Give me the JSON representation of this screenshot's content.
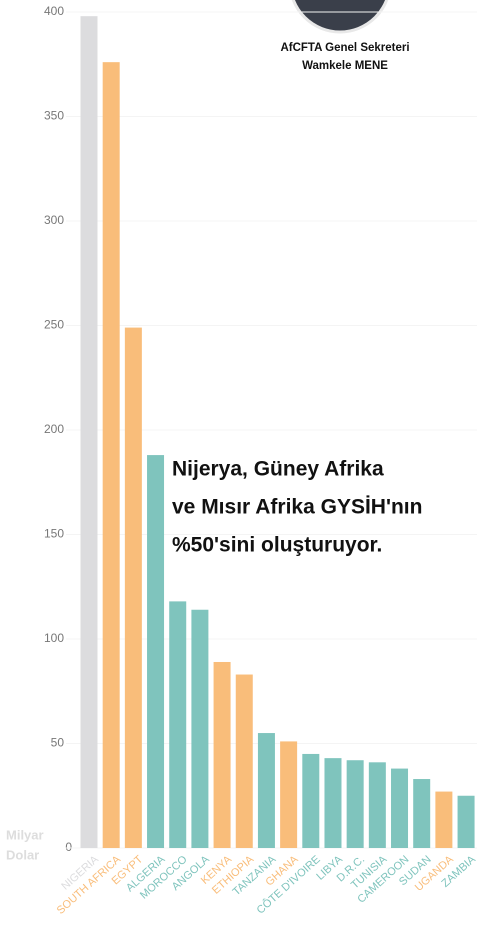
{
  "chart_data": {
    "type": "bar",
    "caption": [
      "AfCFTA Genel Sekreteri",
      "Wamkele MENE"
    ],
    "annotation": [
      "Nijerya, Güney Afrika",
      "ve Mısır Afrika GYSİH'nın",
      "%50'sini oluşturuyor."
    ],
    "y_label": [
      "Milyar",
      "Dolar"
    ],
    "categories": [
      "NIGERIA",
      "SOUTH AFRICA",
      "EGYPT",
      "ALGERIA",
      "MOROCCO",
      "ANGOLA",
      "KENYA",
      "ETHIOPIA",
      "TANZANIA",
      "GHANA",
      "CÔTE D'IVOIRE",
      "LIBYA",
      "D.R.C.",
      "TUNISIA",
      "CAMEROON",
      "SUDAN",
      "UGANDA",
      "ZAMBIA"
    ],
    "values": [
      398,
      376,
      249,
      188,
      118,
      114,
      89,
      83,
      55,
      51,
      45,
      43,
      42,
      41,
      38,
      33,
      27,
      25
    ],
    "colors": [
      "#dcdcde",
      "#f9bd7a",
      "#f9bd7a",
      "#7fc4bd",
      "#7fc4bd",
      "#7fc4bd",
      "#f9bd7a",
      "#f9bd7a",
      "#7fc4bd",
      "#f9bd7a",
      "#7fc4bd",
      "#7fc4bd",
      "#7fc4bd",
      "#7fc4bd",
      "#7fc4bd",
      "#7fc4bd",
      "#f9bd7a",
      "#7fc4bd"
    ],
    "ylim": [
      0,
      400
    ],
    "yticks": [
      0,
      50,
      100,
      150,
      200,
      250,
      300,
      350,
      400
    ]
  }
}
